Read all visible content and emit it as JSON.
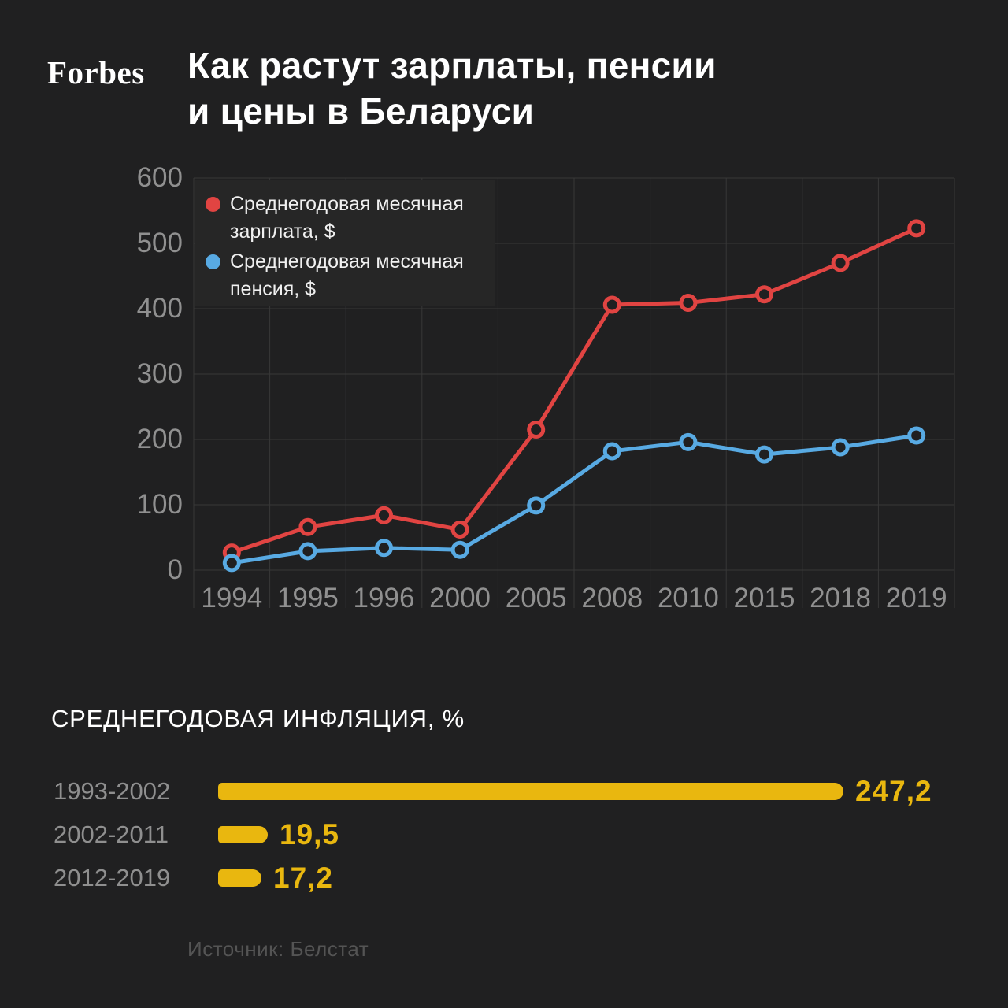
{
  "header": {
    "logo": "Forbes",
    "title_line1": "Как растут зарплаты, пенсии",
    "title_line2": "и цены в Беларуси"
  },
  "chart_data": {
    "type": "line",
    "title": "Как растут зарплаты, пенсии и цены в Беларуси",
    "categories": [
      "1994",
      "1995",
      "1996",
      "2000",
      "2005",
      "2008",
      "2010",
      "2015",
      "2018",
      "2019"
    ],
    "series": [
      {
        "name": "Среднегодовая месячная зарплата, $",
        "color": "#e14442",
        "values": [
          27,
          66,
          84,
          62,
          215,
          406,
          409,
          422,
          470,
          523
        ]
      },
      {
        "name": "Среднегодовая месячная пенсия, $",
        "color": "#58aae3",
        "values": [
          11,
          29,
          34,
          31,
          99,
          182,
          196,
          177,
          188,
          206
        ]
      }
    ],
    "xlabel": "",
    "ylabel": "",
    "ylim": [
      0,
      600
    ],
    "yticks": [
      0,
      100,
      200,
      300,
      400,
      500,
      600
    ],
    "grid": true,
    "legend_position": "top-left"
  },
  "inflation": {
    "heading": "СРЕДНЕГОДОВАЯ ИНФЛЯЦИЯ, %",
    "bar_color": "#e9b70f",
    "max_value": 247.2,
    "bars": [
      {
        "label": "1993-2002",
        "value": 247.2,
        "value_label": "247,2"
      },
      {
        "label": "2002-2011",
        "value": 19.5,
        "value_label": "19,5"
      },
      {
        "label": "2012-2019",
        "value": 17.2,
        "value_label": "17,2"
      }
    ]
  },
  "source": "Источник: Белстат",
  "colors": {
    "background": "#202021",
    "grid": "#383838",
    "axis_text": "#909090",
    "title_text": "#ffffff",
    "legend_box": "#262626"
  }
}
